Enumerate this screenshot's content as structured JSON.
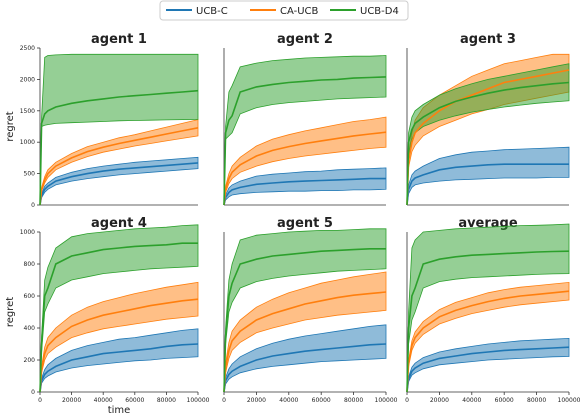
{
  "legend": {
    "placement": "top-center",
    "entries": [
      {
        "label": "UCB-C",
        "color": "#1f77b4"
      },
      {
        "label": "CA-UCB",
        "color": "#ff7f0e"
      },
      {
        "label": "UCB-D4",
        "color": "#2ca02c"
      }
    ]
  },
  "axis_labels": {
    "x": "time",
    "y": "regret"
  },
  "chart_data": [
    {
      "type": "line",
      "title": "agent 1",
      "xlabel": "",
      "ylabel": "regret",
      "xlim": [
        0,
        100000
      ],
      "ylim": [
        0,
        2500
      ],
      "xticks": [],
      "yticks": [
        0,
        500,
        1000,
        1500,
        2000,
        2500
      ],
      "x": [
        0,
        1000,
        3000,
        5000,
        10000,
        20000,
        30000,
        40000,
        50000,
        60000,
        70000,
        80000,
        90000,
        100000
      ],
      "series": [
        {
          "name": "UCB-C",
          "values": [
            0,
            150,
            250,
            300,
            380,
            450,
            500,
            540,
            570,
            590,
            610,
            630,
            650,
            670
          ],
          "lower": [
            0,
            120,
            200,
            250,
            320,
            380,
            420,
            450,
            480,
            500,
            520,
            540,
            560,
            580
          ],
          "upper": [
            0,
            180,
            300,
            350,
            440,
            520,
            580,
            620,
            650,
            680,
            700,
            720,
            740,
            760
          ]
        },
        {
          "name": "CA-UCB",
          "values": [
            0,
            250,
            400,
            500,
            620,
            750,
            850,
            920,
            980,
            1030,
            1080,
            1130,
            1180,
            1230
          ],
          "lower": [
            0,
            220,
            350,
            440,
            560,
            680,
            770,
            840,
            890,
            940,
            980,
            1020,
            1060,
            1100
          ],
          "upper": [
            0,
            280,
            450,
            560,
            680,
            820,
            930,
            1000,
            1070,
            1120,
            1180,
            1240,
            1300,
            1360
          ]
        },
        {
          "name": "UCB-D4",
          "values": [
            0,
            1300,
            1450,
            1500,
            1560,
            1620,
            1660,
            1690,
            1720,
            1740,
            1760,
            1780,
            1800,
            1820
          ],
          "lower": [
            0,
            1250,
            1270,
            1280,
            1300,
            1310,
            1320,
            1330,
            1340,
            1345,
            1350,
            1355,
            1360,
            1365
          ],
          "upper": [
            0,
            1400,
            2350,
            2380,
            2390,
            2400,
            2400,
            2400,
            2400,
            2400,
            2400,
            2400,
            2400,
            2400
          ]
        }
      ]
    },
    {
      "type": "line",
      "title": "agent 2",
      "xlabel": "",
      "ylabel": "",
      "xlim": [
        0,
        100000
      ],
      "ylim": [
        0,
        2500
      ],
      "xticks": [],
      "yticks": [],
      "x": [
        0,
        1000,
        3000,
        5000,
        10000,
        20000,
        30000,
        40000,
        50000,
        60000,
        70000,
        80000,
        90000,
        100000
      ],
      "series": [
        {
          "name": "UCB-C",
          "values": [
            0,
            120,
            200,
            240,
            280,
            330,
            350,
            370,
            380,
            390,
            400,
            410,
            420,
            420
          ],
          "lower": [
            0,
            80,
            130,
            160,
            180,
            200,
            210,
            220,
            220,
            230,
            230,
            240,
            240,
            250
          ],
          "upper": [
            0,
            160,
            270,
            320,
            380,
            460,
            490,
            510,
            530,
            540,
            560,
            570,
            580,
            590
          ]
        },
        {
          "name": "CA-UCB",
          "values": [
            0,
            250,
            420,
            520,
            640,
            780,
            870,
            930,
            980,
            1020,
            1060,
            1100,
            1130,
            1160
          ],
          "lower": [
            0,
            200,
            340,
            420,
            520,
            620,
            690,
            740,
            780,
            810,
            840,
            870,
            900,
            920
          ],
          "upper": [
            0,
            300,
            500,
            620,
            760,
            940,
            1050,
            1120,
            1180,
            1230,
            1280,
            1330,
            1360,
            1400
          ]
        },
        {
          "name": "UCB-D4",
          "values": [
            0,
            1150,
            1350,
            1420,
            1800,
            1880,
            1920,
            1950,
            1970,
            1990,
            2000,
            2020,
            2030,
            2040
          ],
          "lower": [
            0,
            1050,
            1100,
            1150,
            1450,
            1550,
            1600,
            1630,
            1650,
            1670,
            1690,
            1700,
            1710,
            1720
          ],
          "upper": [
            0,
            1250,
            1800,
            1900,
            2200,
            2260,
            2300,
            2320,
            2340,
            2350,
            2360,
            2370,
            2370,
            2380
          ]
        }
      ]
    },
    {
      "type": "line",
      "title": "agent 3",
      "xlabel": "",
      "ylabel": "",
      "xlim": [
        0,
        100000
      ],
      "ylim": [
        0,
        2500
      ],
      "xticks": [],
      "yticks": [],
      "x": [
        0,
        1000,
        3000,
        5000,
        10000,
        20000,
        30000,
        40000,
        50000,
        60000,
        70000,
        80000,
        90000,
        100000
      ],
      "series": [
        {
          "name": "UCB-C",
          "values": [
            0,
            250,
            380,
            430,
            480,
            560,
            600,
            620,
            640,
            650,
            650,
            650,
            650,
            650
          ],
          "lower": [
            0,
            180,
            280,
            320,
            350,
            380,
            400,
            410,
            420,
            430,
            430,
            430,
            440,
            440
          ],
          "upper": [
            0,
            320,
            480,
            540,
            620,
            740,
            800,
            840,
            860,
            880,
            890,
            900,
            910,
            920
          ]
        },
        {
          "name": "CA-UCB",
          "values": [
            0,
            700,
            1000,
            1150,
            1300,
            1500,
            1650,
            1750,
            1850,
            1950,
            2000,
            2050,
            2100,
            2150
          ],
          "lower": [
            0,
            600,
            850,
            950,
            1100,
            1250,
            1350,
            1450,
            1520,
            1600,
            1650,
            1700,
            1750,
            1800
          ],
          "upper": [
            0,
            800,
            1150,
            1350,
            1550,
            1750,
            1900,
            2050,
            2150,
            2250,
            2300,
            2350,
            2400,
            2400
          ]
        },
        {
          "name": "UCB-D4",
          "values": [
            0,
            1000,
            1200,
            1300,
            1400,
            1550,
            1650,
            1720,
            1780,
            1830,
            1870,
            1900,
            1930,
            1950
          ],
          "lower": [
            0,
            800,
            1050,
            1150,
            1250,
            1350,
            1420,
            1480,
            1520,
            1560,
            1590,
            1620,
            1640,
            1660
          ],
          "upper": [
            0,
            1150,
            1400,
            1500,
            1600,
            1750,
            1850,
            1930,
            2000,
            2050,
            2100,
            2150,
            2200,
            2250
          ]
        }
      ]
    },
    {
      "type": "line",
      "title": "agent 4",
      "xlabel": "time",
      "ylabel": "regret",
      "xlim": [
        0,
        100000
      ],
      "ylim": [
        0,
        1000
      ],
      "xticks": [
        0,
        20000,
        40000,
        60000,
        80000,
        100000
      ],
      "yticks": [
        0,
        200,
        400,
        600,
        800,
        1000
      ],
      "x": [
        0,
        1000,
        3000,
        5000,
        10000,
        20000,
        30000,
        40000,
        50000,
        60000,
        70000,
        80000,
        90000,
        100000
      ],
      "series": [
        {
          "name": "UCB-C",
          "values": [
            0,
            70,
            110,
            130,
            160,
            200,
            220,
            240,
            250,
            260,
            270,
            285,
            295,
            300
          ],
          "lower": [
            0,
            55,
            85,
            100,
            125,
            150,
            165,
            175,
            185,
            195,
            200,
            210,
            215,
            220
          ],
          "upper": [
            0,
            85,
            140,
            170,
            210,
            260,
            290,
            310,
            330,
            340,
            355,
            370,
            385,
            395
          ]
        },
        {
          "name": "CA-UCB",
          "values": [
            0,
            140,
            240,
            290,
            340,
            410,
            450,
            480,
            500,
            520,
            540,
            555,
            570,
            580
          ],
          "lower": [
            0,
            120,
            200,
            240,
            280,
            340,
            370,
            395,
            410,
            425,
            440,
            455,
            465,
            475
          ],
          "upper": [
            0,
            160,
            280,
            340,
            400,
            480,
            530,
            565,
            590,
            615,
            635,
            655,
            670,
            685
          ]
        },
        {
          "name": "UCB-D4",
          "values": [
            0,
            300,
            600,
            650,
            800,
            850,
            870,
            890,
            900,
            910,
            915,
            920,
            930,
            930
          ],
          "lower": [
            0,
            250,
            500,
            550,
            650,
            700,
            720,
            740,
            750,
            760,
            770,
            775,
            780,
            785
          ],
          "upper": [
            0,
            350,
            700,
            780,
            900,
            970,
            990,
            1000,
            1010,
            1020,
            1025,
            1030,
            1040,
            1045
          ]
        }
      ]
    },
    {
      "type": "line",
      "title": "agent 5",
      "xlabel": "",
      "ylabel": "",
      "xlim": [
        0,
        100000
      ],
      "ylim": [
        0,
        1000
      ],
      "xticks": [
        0,
        20000,
        40000,
        60000,
        80000,
        100000
      ],
      "yticks": [],
      "x": [
        0,
        1000,
        3000,
        5000,
        10000,
        20000,
        30000,
        40000,
        50000,
        60000,
        70000,
        80000,
        90000,
        100000
      ],
      "series": [
        {
          "name": "UCB-C",
          "values": [
            0,
            70,
            110,
            130,
            160,
            200,
            225,
            240,
            255,
            265,
            275,
            285,
            295,
            300
          ],
          "lower": [
            0,
            50,
            80,
            95,
            120,
            145,
            160,
            170,
            180,
            190,
            195,
            200,
            205,
            210
          ],
          "upper": [
            0,
            90,
            145,
            175,
            220,
            270,
            305,
            330,
            350,
            365,
            380,
            395,
            410,
            420
          ]
        },
        {
          "name": "CA-UCB",
          "values": [
            0,
            150,
            260,
            320,
            380,
            450,
            490,
            520,
            550,
            570,
            590,
            605,
            615,
            625
          ],
          "lower": [
            0,
            120,
            210,
            260,
            310,
            370,
            400,
            425,
            450,
            465,
            480,
            490,
            500,
            510
          ],
          "upper": [
            0,
            180,
            310,
            380,
            450,
            530,
            580,
            620,
            650,
            680,
            700,
            720,
            735,
            750
          ]
        },
        {
          "name": "UCB-D4",
          "values": [
            0,
            350,
            600,
            680,
            800,
            830,
            850,
            860,
            870,
            880,
            885,
            890,
            895,
            895
          ],
          "lower": [
            0,
            300,
            500,
            560,
            650,
            690,
            710,
            725,
            735,
            745,
            755,
            760,
            765,
            770
          ],
          "upper": [
            0,
            400,
            700,
            800,
            950,
            980,
            990,
            1000,
            1005,
            1010,
            1010,
            1015,
            1020,
            1020
          ]
        }
      ]
    },
    {
      "type": "line",
      "title": "average",
      "xlabel": "",
      "ylabel": "",
      "xlim": [
        0,
        100000
      ],
      "ylim": [
        0,
        1000
      ],
      "xticks": [
        0,
        20000,
        40000,
        60000,
        80000,
        100000
      ],
      "yticks": [],
      "x": [
        0,
        1000,
        3000,
        5000,
        10000,
        20000,
        30000,
        40000,
        50000,
        60000,
        70000,
        80000,
        90000,
        100000
      ],
      "series": [
        {
          "name": "UCB-C",
          "values": [
            0,
            80,
            130,
            150,
            180,
            210,
            225,
            240,
            250,
            260,
            265,
            270,
            275,
            280
          ],
          "lower": [
            0,
            65,
            105,
            120,
            145,
            170,
            180,
            190,
            200,
            205,
            210,
            215,
            220,
            222
          ],
          "upper": [
            0,
            95,
            155,
            180,
            215,
            250,
            270,
            285,
            300,
            310,
            320,
            325,
            330,
            335
          ]
        },
        {
          "name": "CA-UCB",
          "values": [
            0,
            180,
            290,
            340,
            400,
            470,
            510,
            540,
            565,
            585,
            600,
            610,
            620,
            630
          ],
          "lower": [
            0,
            160,
            260,
            305,
            360,
            425,
            460,
            490,
            510,
            530,
            545,
            555,
            565,
            575
          ],
          "upper": [
            0,
            200,
            320,
            375,
            440,
            515,
            560,
            590,
            620,
            640,
            655,
            665,
            675,
            685
          ]
        },
        {
          "name": "UCB-D4",
          "values": [
            0,
            400,
            600,
            650,
            800,
            830,
            845,
            855,
            860,
            865,
            870,
            875,
            878,
            880
          ],
          "lower": [
            0,
            300,
            450,
            500,
            650,
            690,
            705,
            715,
            720,
            725,
            730,
            735,
            738,
            740
          ],
          "upper": [
            0,
            500,
            900,
            950,
            1000,
            1010,
            1020,
            1025,
            1030,
            1035,
            1040,
            1042,
            1045,
            1050
          ]
        }
      ]
    }
  ]
}
